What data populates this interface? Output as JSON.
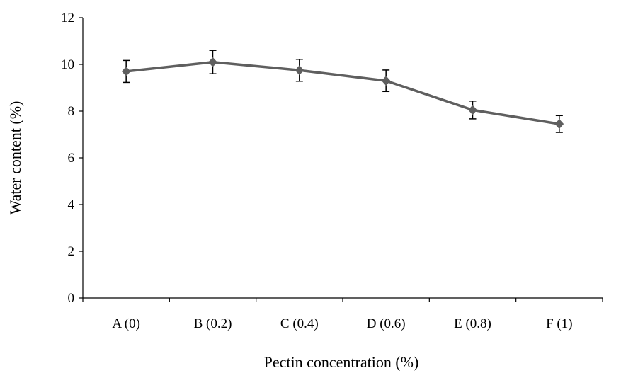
{
  "chart_data": {
    "type": "line",
    "title": "",
    "xlabel": "Pectin concentration (%)",
    "ylabel": "Water content (%)",
    "categories": [
      "A (0)",
      "B (0.2)",
      "C (0.4)",
      "D (0.6)",
      "E (0.8)",
      "F (1)"
    ],
    "series": [
      {
        "values": [
          9.7,
          10.1,
          9.75,
          9.3,
          8.05,
          7.45
        ],
        "error": [
          0.47,
          0.5,
          0.47,
          0.46,
          0.38,
          0.36
        ]
      }
    ],
    "ylim": [
      0,
      12
    ],
    "yticks": [
      0,
      2,
      4,
      6,
      8,
      10,
      12
    ],
    "grid": false,
    "legend": "none",
    "colors": {
      "series": "#5f5f5f",
      "axis": "#000000",
      "error_bar": "#000000"
    }
  }
}
